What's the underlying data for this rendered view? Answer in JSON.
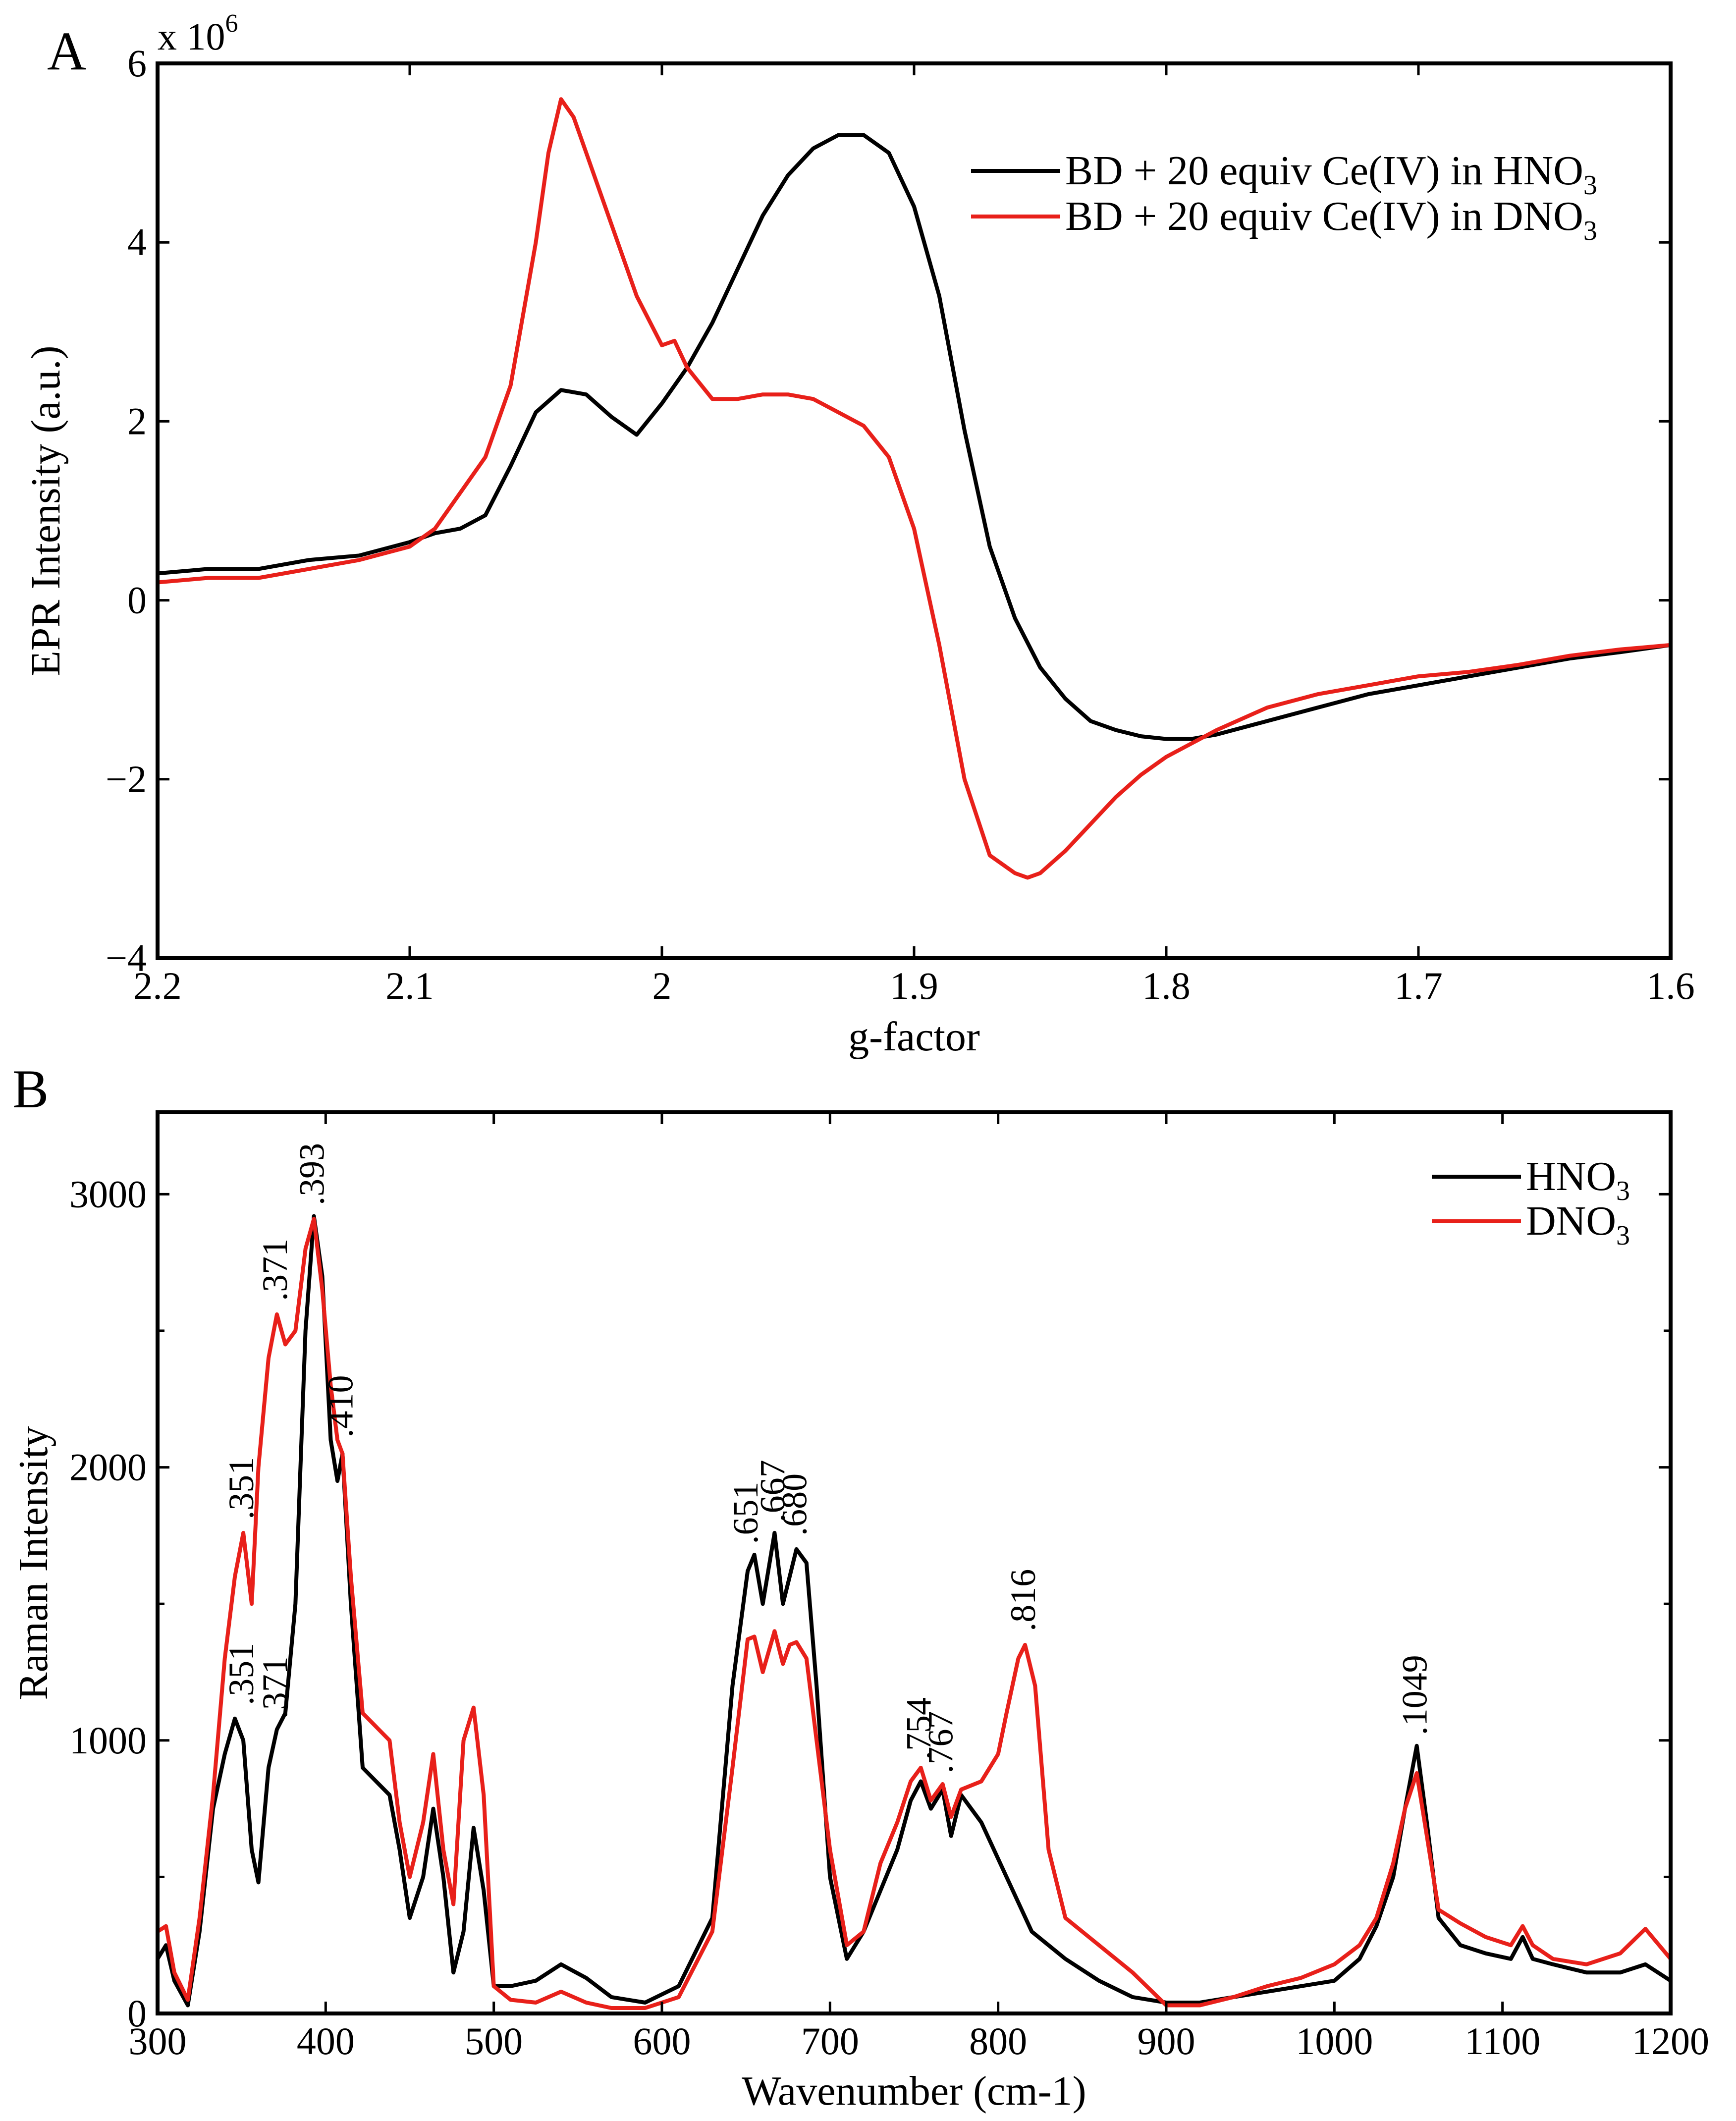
{
  "chart_data": [
    {
      "panel_label": "A",
      "type": "line",
      "xlabel": "g-factor",
      "ylabel": "EPR Intensity (a.u.)",
      "multiplier": "x 10",
      "multiplier_exp": "6",
      "xlim": [
        2.2,
        1.6
      ],
      "ylim": [
        -4,
        6
      ],
      "x_reversed": true,
      "xticks": [
        "2.2",
        "2.1",
        "2",
        "1.9",
        "1.8",
        "1.7",
        "1.6"
      ],
      "xtick_values": [
        2.2,
        2.1,
        2.0,
        1.9,
        1.8,
        1.7,
        1.6
      ],
      "yticks": [
        "−4",
        "−2",
        "0",
        "2",
        "4",
        "6"
      ],
      "ytick_values": [
        -4,
        -2,
        0,
        2,
        4,
        6
      ],
      "grid": false,
      "legend_position": "top-right",
      "series": [
        {
          "legend_prefix": "BD + 20 equiv Ce(IV) in HNO",
          "legend_sub": "3",
          "color": "#000000",
          "x": [
            2.2,
            2.18,
            2.16,
            2.14,
            2.12,
            2.1,
            2.09,
            2.08,
            2.07,
            2.06,
            2.05,
            2.04,
            2.03,
            2.02,
            2.01,
            2.0,
            1.99,
            1.98,
            1.97,
            1.96,
            1.95,
            1.94,
            1.93,
            1.92,
            1.91,
            1.9,
            1.89,
            1.88,
            1.87,
            1.86,
            1.85,
            1.84,
            1.83,
            1.82,
            1.81,
            1.8,
            1.79,
            1.78,
            1.76,
            1.74,
            1.72,
            1.7,
            1.68,
            1.66,
            1.64,
            1.62,
            1.6
          ],
          "y": [
            0.3,
            0.35,
            0.35,
            0.45,
            0.5,
            0.65,
            0.75,
            0.8,
            0.95,
            1.5,
            2.1,
            2.35,
            2.3,
            2.05,
            1.85,
            2.2,
            2.6,
            3.1,
            3.7,
            4.3,
            4.75,
            5.05,
            5.2,
            5.2,
            5.0,
            4.4,
            3.4,
            1.9,
            0.6,
            -0.2,
            -0.75,
            -1.1,
            -1.35,
            -1.45,
            -1.52,
            -1.55,
            -1.55,
            -1.5,
            -1.35,
            -1.2,
            -1.05,
            -0.95,
            -0.85,
            -0.75,
            -0.65,
            -0.58,
            -0.5
          ]
        },
        {
          "legend_prefix": "BD + 20 equiv Ce(IV) in DNO",
          "legend_sub": "3",
          "color": "#e8201a",
          "x": [
            2.2,
            2.18,
            2.16,
            2.14,
            2.12,
            2.1,
            2.09,
            2.08,
            2.07,
            2.06,
            2.05,
            2.045,
            2.04,
            2.035,
            2.03,
            2.02,
            2.01,
            2.0,
            1.995,
            1.99,
            1.98,
            1.97,
            1.96,
            1.95,
            1.94,
            1.93,
            1.92,
            1.91,
            1.9,
            1.89,
            1.88,
            1.87,
            1.86,
            1.855,
            1.85,
            1.84,
            1.83,
            1.82,
            1.81,
            1.8,
            1.78,
            1.76,
            1.74,
            1.72,
            1.7,
            1.68,
            1.66,
            1.64,
            1.62,
            1.6
          ],
          "y": [
            0.2,
            0.25,
            0.25,
            0.35,
            0.45,
            0.6,
            0.8,
            1.2,
            1.6,
            2.4,
            4.0,
            5.0,
            5.6,
            5.4,
            5.0,
            4.2,
            3.4,
            2.85,
            2.9,
            2.6,
            2.25,
            2.25,
            2.3,
            2.3,
            2.25,
            2.1,
            1.95,
            1.6,
            0.8,
            -0.5,
            -2.0,
            -2.85,
            -3.05,
            -3.1,
            -3.05,
            -2.8,
            -2.5,
            -2.2,
            -1.95,
            -1.75,
            -1.45,
            -1.2,
            -1.05,
            -0.95,
            -0.85,
            -0.8,
            -0.72,
            -0.62,
            -0.55,
            -0.5
          ]
        }
      ]
    },
    {
      "panel_label": "B",
      "type": "line",
      "xlabel": "Wavenumber (cm-1)",
      "ylabel": "Raman Intensity",
      "xlim": [
        300,
        1200
      ],
      "ylim": [
        0,
        3300
      ],
      "x_reversed": false,
      "xticks": [
        "300",
        "400",
        "500",
        "600",
        "700",
        "800",
        "900",
        "1000",
        "1100",
        "1200"
      ],
      "xtick_values": [
        300,
        400,
        500,
        600,
        700,
        800,
        900,
        1000,
        1100,
        1200
      ],
      "yticks": [
        "0",
        "1000",
        "2000",
        "3000"
      ],
      "ytick_values": [
        0,
        1000,
        2000,
        3000
      ],
      "minor_ytick_values": [
        500,
        1500,
        2500
      ],
      "grid": false,
      "legend_position": "top-right",
      "series": [
        {
          "legend_prefix": "HNO",
          "legend_sub": "3",
          "color": "#000000",
          "x": [
            300,
            305,
            310,
            318,
            325,
            333,
            340,
            346,
            351,
            356,
            360,
            366,
            371,
            376,
            382,
            388,
            393,
            398,
            403,
            407,
            410,
            415,
            422,
            430,
            438,
            444,
            450,
            458,
            464,
            470,
            476,
            482,
            488,
            494,
            500,
            510,
            525,
            540,
            555,
            570,
            590,
            610,
            630,
            642,
            651,
            655,
            660,
            667,
            672,
            676,
            680,
            686,
            692,
            700,
            710,
            720,
            730,
            740,
            748,
            754,
            760,
            767,
            772,
            778,
            790,
            805,
            820,
            840,
            860,
            880,
            900,
            920,
            940,
            960,
            980,
            1000,
            1015,
            1025,
            1035,
            1042,
            1049,
            1055,
            1062,
            1075,
            1090,
            1105,
            1112,
            1118,
            1130,
            1150,
            1170,
            1185,
            1200
          ],
          "y": [
            200,
            250,
            120,
            30,
            300,
            750,
            950,
            1080,
            1000,
            600,
            480,
            900,
            1040,
            1100,
            1500,
            2500,
            2920,
            2700,
            2100,
            1950,
            2050,
            1500,
            900,
            850,
            800,
            600,
            350,
            500,
            750,
            500,
            150,
            300,
            680,
            450,
            100,
            100,
            120,
            180,
            130,
            60,
            40,
            100,
            350,
            1200,
            1620,
            1680,
            1500,
            1760,
            1500,
            1600,
            1700,
            1650,
            1200,
            500,
            200,
            300,
            450,
            600,
            780,
            850,
            750,
            820,
            650,
            800,
            700,
            500,
            300,
            200,
            120,
            60,
            40,
            40,
            60,
            80,
            100,
            120,
            200,
            320,
            500,
            750,
            980,
            700,
            350,
            250,
            220,
            200,
            280,
            200,
            180,
            150,
            150,
            180,
            120
          ]
        },
        {
          "legend_prefix": "DNO",
          "legend_sub": "3",
          "color": "#e8201a",
          "x": [
            300,
            305,
            310,
            318,
            325,
            333,
            340,
            346,
            351,
            356,
            360,
            366,
            371,
            376,
            382,
            388,
            393,
            398,
            403,
            407,
            410,
            415,
            422,
            430,
            438,
            444,
            450,
            458,
            464,
            470,
            476,
            482,
            488,
            494,
            500,
            510,
            525,
            540,
            555,
            570,
            590,
            610,
            630,
            642,
            651,
            655,
            660,
            667,
            672,
            676,
            680,
            686,
            692,
            700,
            710,
            720,
            730,
            740,
            748,
            754,
            760,
            767,
            772,
            778,
            790,
            800,
            805,
            812,
            816,
            822,
            830,
            840,
            860,
            880,
            900,
            920,
            940,
            960,
            980,
            1000,
            1015,
            1025,
            1035,
            1042,
            1049,
            1055,
            1062,
            1075,
            1090,
            1105,
            1112,
            1118,
            1130,
            1150,
            1170,
            1185,
            1200
          ],
          "y": [
            300,
            320,
            150,
            50,
            350,
            800,
            1300,
            1600,
            1760,
            1500,
            2000,
            2400,
            2560,
            2450,
            2500,
            2800,
            2910,
            2650,
            2300,
            2100,
            2050,
            1600,
            1100,
            1050,
            1000,
            700,
            500,
            700,
            950,
            600,
            400,
            1000,
            1120,
            800,
            100,
            50,
            40,
            80,
            40,
            20,
            20,
            60,
            300,
            900,
            1370,
            1380,
            1250,
            1400,
            1280,
            1350,
            1360,
            1300,
            1000,
            600,
            250,
            300,
            550,
            700,
            850,
            900,
            780,
            840,
            720,
            820,
            850,
            950,
            1100,
            1300,
            1350,
            1200,
            600,
            350,
            250,
            150,
            30,
            30,
            60,
            100,
            130,
            180,
            250,
            350,
            550,
            750,
            880,
            650,
            380,
            330,
            280,
            250,
            320,
            250,
            200,
            180,
            220,
            310,
            200
          ]
        }
      ],
      "annotations": [
        {
          "text": ".351",
          "x": 351,
          "y": 1100
        },
        {
          "text": ".371",
          "x": 371,
          "y": 1050
        },
        {
          "text": ".351",
          "x": 351,
          "y": 1780
        },
        {
          "text": ".371",
          "x": 371,
          "y": 2580
        },
        {
          "text": ".393",
          "x": 393,
          "y": 2930
        },
        {
          "text": ".410",
          "x": 410,
          "y": 2080
        },
        {
          "text": ".651",
          "x": 651,
          "y": 1690
        },
        {
          "text": ".667",
          "x": 667,
          "y": 1770
        },
        {
          "text": ".680",
          "x": 680,
          "y": 1720
        },
        {
          "text": ".754",
          "x": 754,
          "y": 900
        },
        {
          "text": ".767",
          "x": 767,
          "y": 850
        },
        {
          "text": ".816",
          "x": 816,
          "y": 1370
        },
        {
          "text": ".1049",
          "x": 1049,
          "y": 990
        }
      ]
    }
  ]
}
